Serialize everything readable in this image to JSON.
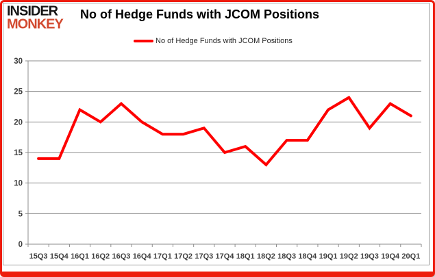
{
  "page": {
    "logo": {
      "line1": "INSIDER",
      "line2": "MONKEY"
    },
    "title": "No of Hedge Funds with JCOM Positions",
    "legend_label": "No of Hedge Funds with JCOM Positions"
  },
  "colors": {
    "series_red": "#fe0000",
    "gridline_gray": "#8c8c8c",
    "axis_text": "#3f3f3f",
    "title_black": "#000000",
    "logo_black": "#161616",
    "logo_red": "#d2492f",
    "frame_red": "#ee1c0d"
  },
  "chart_data": {
    "type": "line",
    "title": "No of Hedge Funds with JCOM Positions",
    "categories": [
      "15Q3",
      "15Q4",
      "16Q1",
      "16Q2",
      "16Q3",
      "16Q4",
      "17Q1",
      "17Q2",
      "17Q3",
      "17Q4",
      "18Q1",
      "18Q2",
      "18Q3",
      "18Q4",
      "19Q1",
      "19Q2",
      "19Q3",
      "19Q4",
      "20Q1"
    ],
    "series": [
      {
        "name": "No of Hedge Funds with JCOM Positions",
        "values": [
          14,
          14,
          22,
          20,
          23,
          20,
          18,
          18,
          19,
          15,
          16,
          13,
          17,
          17,
          22,
          24,
          19,
          23,
          21
        ]
      }
    ],
    "ylim": [
      0,
      30
    ],
    "ytick_step": 5,
    "grid": true,
    "legend_position": "top-center",
    "xlabel": "",
    "ylabel": ""
  }
}
